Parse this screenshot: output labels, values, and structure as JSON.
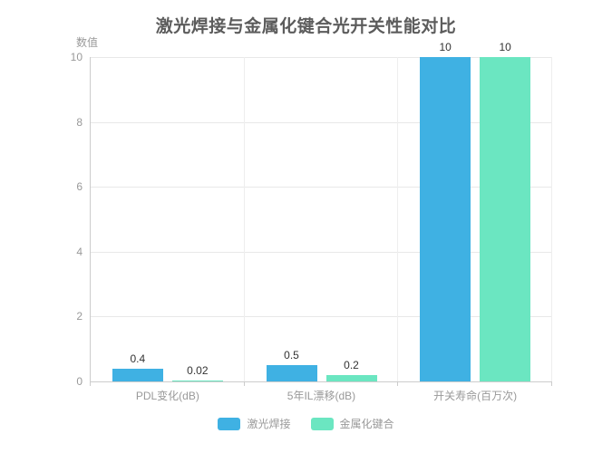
{
  "chart_data": {
    "type": "bar",
    "title": "激光焊接与金属化键合光开关性能对比",
    "ylabel": "数值",
    "xlabel": "",
    "categories": [
      "PDL变化(dB)",
      "5年IL漂移(dB)",
      "开关寿命(百万次)"
    ],
    "series": [
      {
        "name": "激光焊接",
        "color": "#3fb1e3",
        "values": [
          0.4,
          0.5,
          10
        ],
        "value_labels": [
          "0.4",
          "0.5",
          "10"
        ]
      },
      {
        "name": "金属化键合",
        "color": "#6be6c1",
        "values": [
          0.02,
          0.2,
          10
        ],
        "value_labels": [
          "0.02",
          "0.2",
          "10"
        ]
      }
    ],
    "ylim": [
      0,
      10
    ],
    "yticks": [
      0,
      2,
      4,
      6,
      8,
      10
    ],
    "grid": "horizontal and vertical light gridlines",
    "legend_position": "bottom"
  },
  "style": {
    "background": "#ffffff",
    "title_color": "#5c5c5c",
    "axis_label_color": "#999999",
    "value_label_color": "#333333",
    "axis_line_color": "#cccccc",
    "grid_line_color": "#e8e8e8"
  }
}
